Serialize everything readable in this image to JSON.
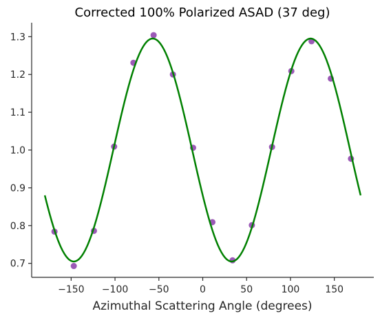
{
  "chart_data": {
    "type": "scatter",
    "title": "Corrected 100% Polarized ASAD (37 deg)",
    "xlabel": "Azimuthal Scattering Angle (degrees)",
    "ylabel": "",
    "xlim": [
      -195,
      195
    ],
    "ylim": [
      0.663,
      1.337
    ],
    "xticks": [
      -150,
      -100,
      -50,
      0,
      50,
      100,
      150
    ],
    "xtick_labels": [
      "−150",
      "−100",
      "−50",
      "0",
      "50",
      "100",
      "150"
    ],
    "yticks": [
      0.7,
      0.8,
      0.9,
      1.0,
      1.1,
      1.2,
      1.3
    ],
    "ytick_labels": [
      "0.7",
      "0.8",
      "0.9",
      "1.0",
      "1.1",
      "1.2",
      "1.3"
    ],
    "grid": false,
    "colors": {
      "points": "#9b59b6",
      "fit": "#008000",
      "axis": "#262626"
    },
    "series": [
      {
        "type": "scatter",
        "x": [
          -169,
          -147,
          -124,
          -101,
          -79,
          -56,
          -34,
          -11,
          11,
          34,
          56,
          79,
          101,
          124,
          146,
          169
        ],
        "y": [
          0.784,
          0.693,
          0.786,
          1.009,
          1.231,
          1.304,
          1.2,
          1.006,
          0.809,
          0.708,
          0.801,
          1.008,
          1.209,
          1.288,
          1.189,
          0.977
        ]
      },
      {
        "type": "line",
        "function": "1 + A*cos(2*(x - phase))",
        "A": 0.295,
        "phase": 123,
        "x_range": [
          -180,
          180
        ]
      }
    ]
  }
}
